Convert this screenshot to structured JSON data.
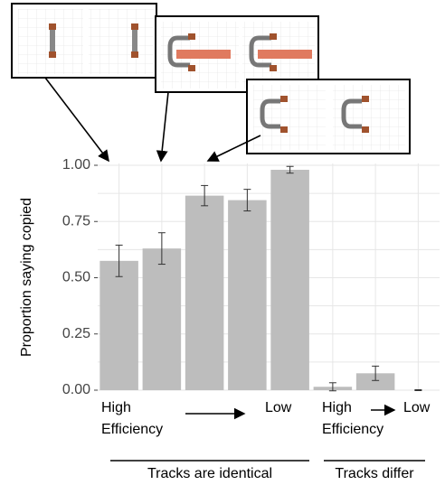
{
  "chart_data": {
    "type": "bar",
    "y_label": "Proportion saying copied",
    "categories": [
      null,
      null,
      null,
      null,
      null,
      null,
      null,
      null
    ],
    "values": [
      0.575,
      0.63,
      0.865,
      0.845,
      0.98,
      0.015,
      0.075,
      0.0
    ],
    "errors": [
      0.07,
      0.07,
      0.045,
      0.048,
      0.015,
      0.018,
      0.032,
      0.002
    ],
    "color": "#bdbdbd",
    "ylim": [
      0,
      1
    ],
    "yticks": [
      {
        "value": 0,
        "label": "0.00"
      },
      {
        "value": 0.25,
        "label": "0.25"
      },
      {
        "value": 0.5,
        "label": "0.50"
      },
      {
        "value": 0.75,
        "label": "0.75"
      },
      {
        "value": 1,
        "label": "1.00"
      }
    ],
    "grid": true,
    "groups": [
      {
        "high": "High",
        "efficiency": "Efficiency",
        "low": "Low",
        "label": "Tracks are identical"
      },
      {
        "high": "High",
        "efficiency": "Efficiency",
        "low": "Low",
        "label": "Tracks differ"
      }
    ]
  }
}
